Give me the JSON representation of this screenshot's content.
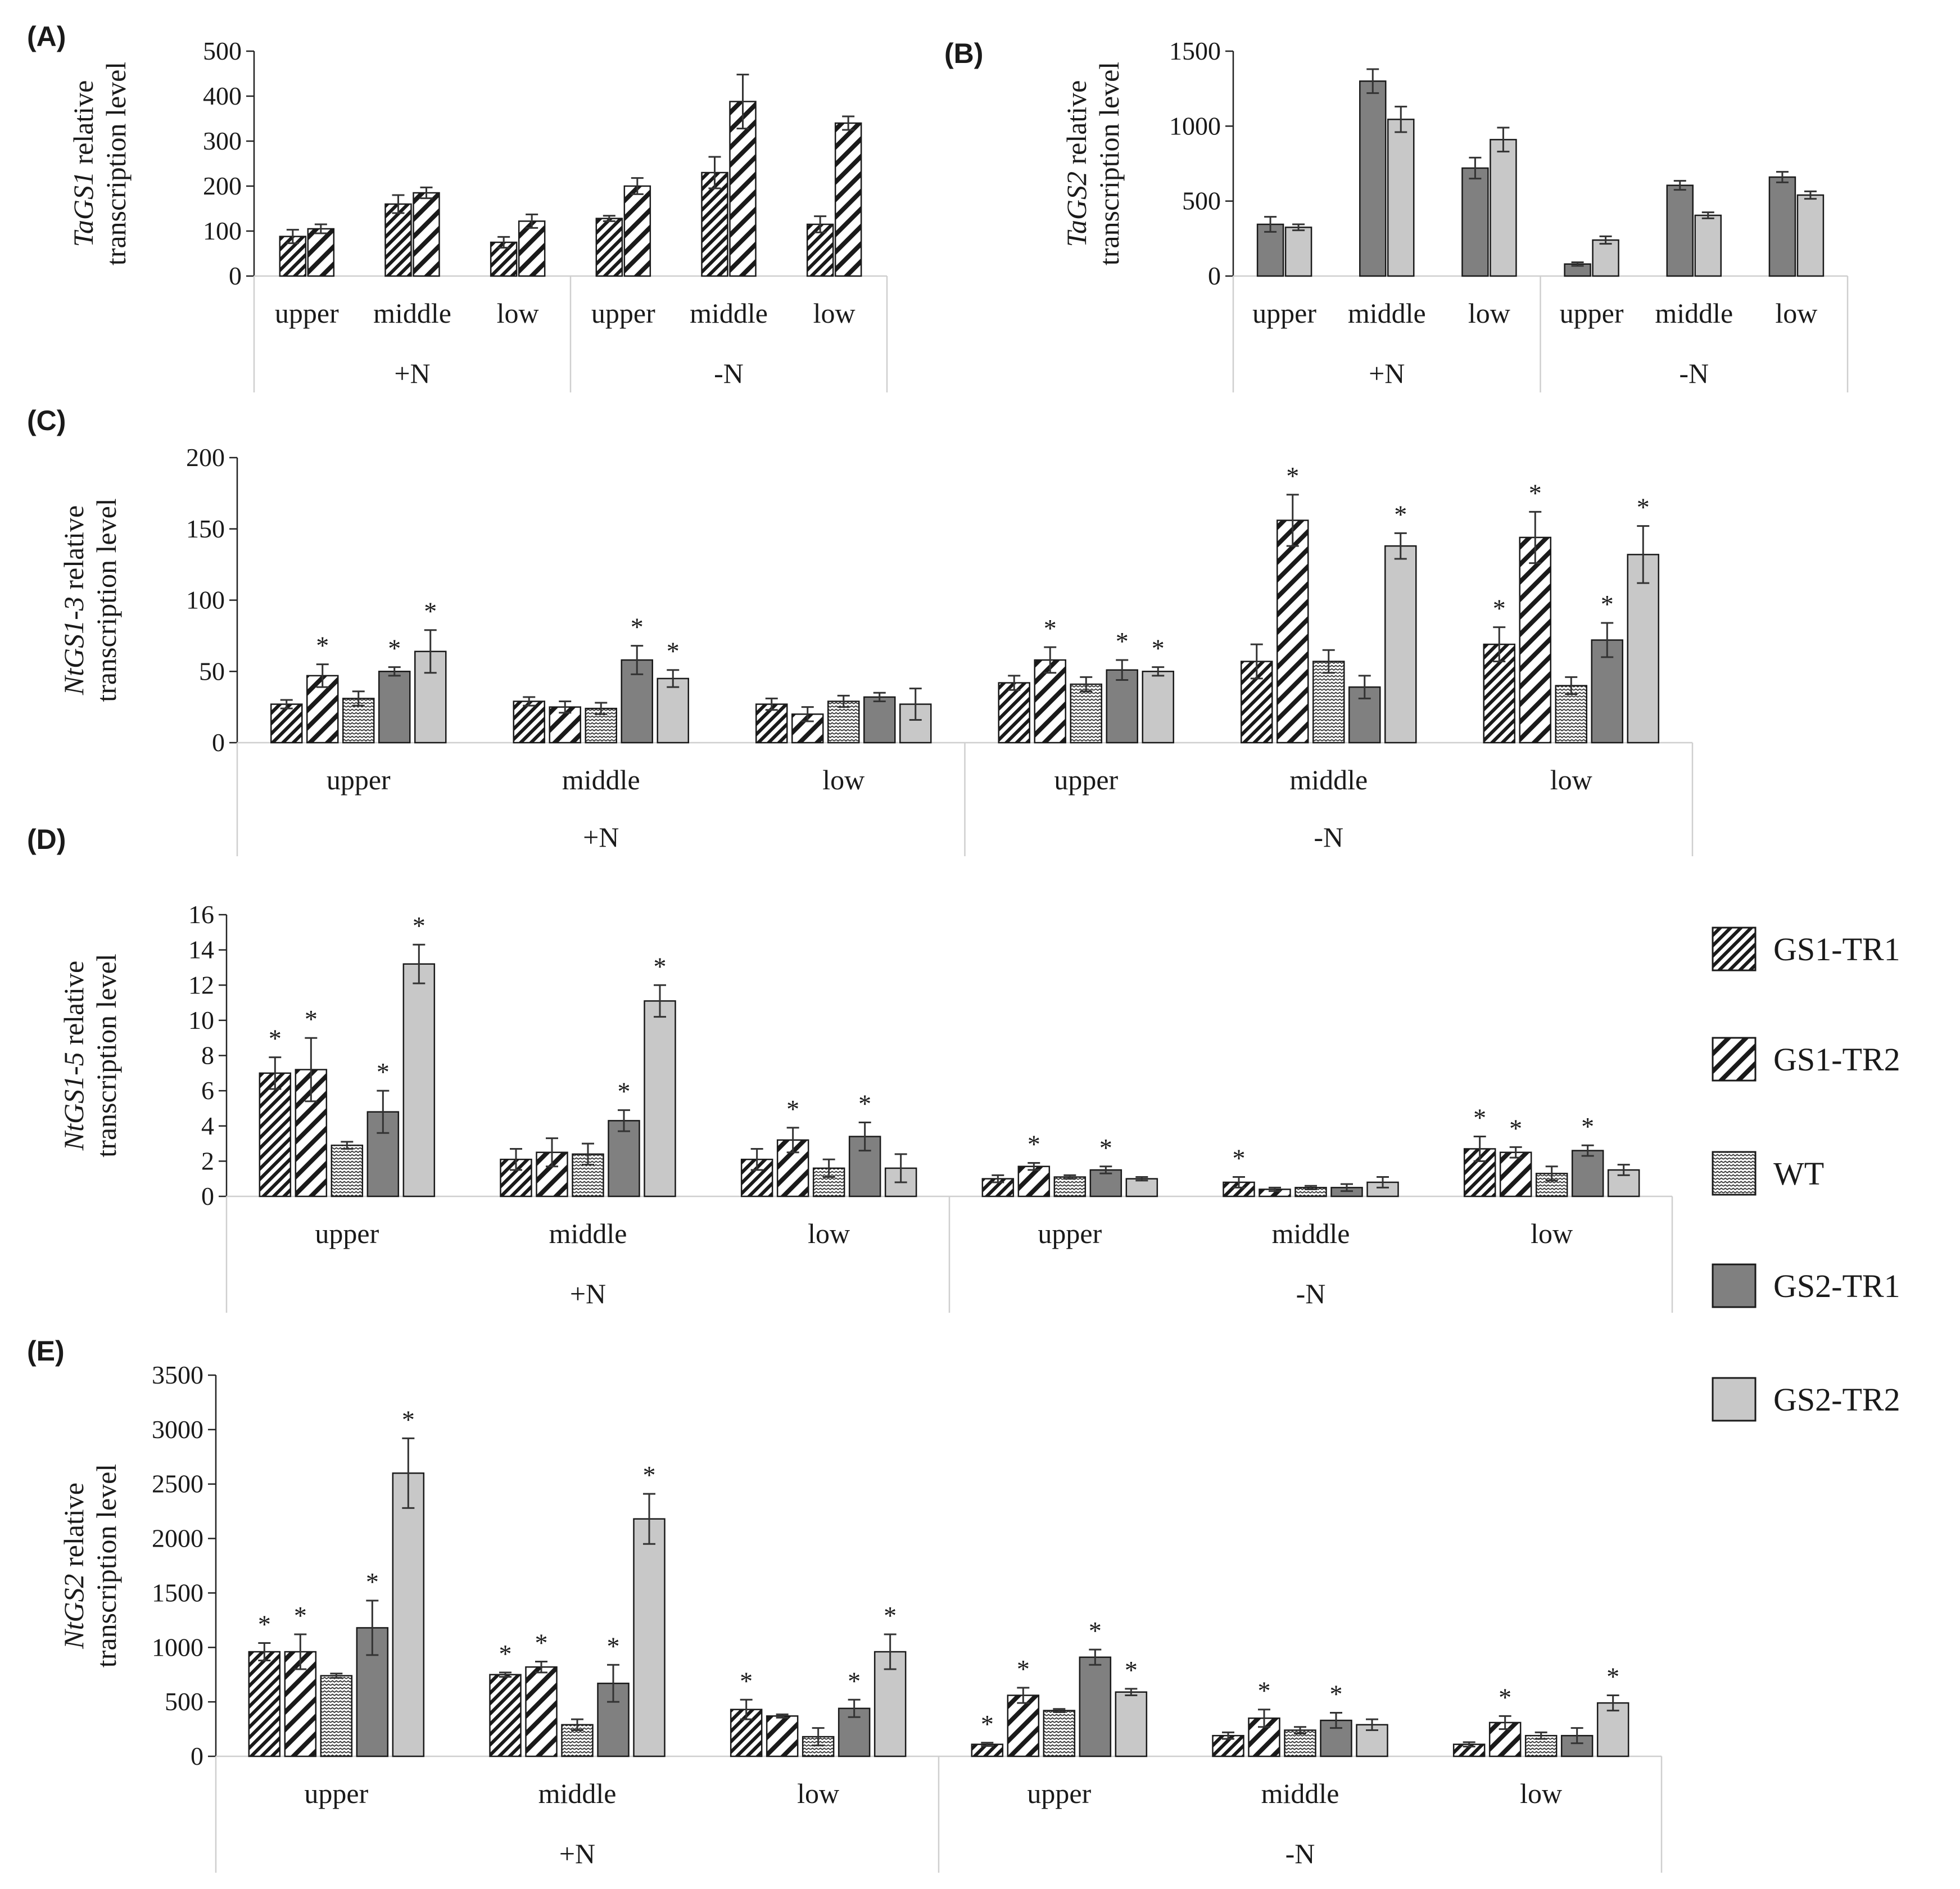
{
  "figure": {
    "legend": [
      {
        "key": "GS1-TR1",
        "label": "GS1-TR1"
      },
      {
        "key": "GS1-TR2",
        "label": "GS1-TR2"
      },
      {
        "key": "WT",
        "label": "WT"
      },
      {
        "key": "GS2-TR1",
        "label": "GS2-TR1"
      },
      {
        "key": "GS2-TR2",
        "label": "GS2-TR2"
      }
    ]
  },
  "chart_data": [
    {
      "panel": "(A)",
      "type": "bar",
      "ylabel_italic": "TaGS1",
      "ylabel_rest": " relative",
      "ylabel_line2": "transcription level",
      "ylim": [
        0,
        500
      ],
      "yticks": [
        0,
        100,
        200,
        300,
        400,
        500
      ],
      "groups": [
        "+N",
        "-N"
      ],
      "categories": [
        "upper",
        "middle",
        "low",
        "upper",
        "middle",
        "low"
      ],
      "series": [
        {
          "name": "GS1-TR1",
          "values": [
            88,
            160,
            75,
            128,
            230,
            115
          ],
          "errors": [
            15,
            20,
            12,
            6,
            35,
            18
          ],
          "stars": [
            false,
            false,
            false,
            false,
            false,
            false
          ]
        },
        {
          "name": "GS1-TR2",
          "values": [
            105,
            185,
            122,
            200,
            388,
            340
          ],
          "errors": [
            10,
            12,
            15,
            18,
            60,
            15
          ],
          "stars": [
            false,
            false,
            false,
            false,
            false,
            false
          ]
        }
      ]
    },
    {
      "panel": "(B)",
      "type": "bar",
      "ylabel_italic": "TaGS2",
      "ylabel_rest": " relative",
      "ylabel_line2": "transcription level",
      "ylim": [
        0,
        1500
      ],
      "yticks": [
        0,
        500,
        1000,
        1500
      ],
      "groups": [
        "+N",
        "-N"
      ],
      "categories": [
        "upper",
        "middle",
        "low",
        "upper",
        "middle",
        "low"
      ],
      "series": [
        {
          "name": "GS2-TR1",
          "values": [
            345,
            1300,
            720,
            80,
            605,
            660
          ],
          "errors": [
            50,
            80,
            70,
            12,
            30,
            35
          ],
          "stars": [
            false,
            false,
            false,
            false,
            false,
            false
          ]
        },
        {
          "name": "GS2-TR2",
          "values": [
            325,
            1045,
            910,
            240,
            405,
            540
          ],
          "errors": [
            20,
            85,
            80,
            25,
            20,
            25
          ],
          "stars": [
            false,
            false,
            false,
            false,
            false,
            false
          ]
        }
      ]
    },
    {
      "panel": "(C)",
      "type": "bar",
      "ylabel_italic": "NtGS1-3",
      "ylabel_rest": " relative",
      "ylabel_line2": "transcription level",
      "ylim": [
        0,
        200
      ],
      "yticks": [
        0,
        50,
        100,
        150,
        200
      ],
      "groups": [
        "+N",
        "-N"
      ],
      "categories": [
        "upper",
        "middle",
        "low",
        "upper",
        "middle",
        "low"
      ],
      "series": [
        {
          "name": "GS1-TR1",
          "values": [
            27,
            29,
            27,
            42,
            57,
            69
          ],
          "errors": [
            3,
            3,
            4,
            5,
            12,
            12
          ],
          "stars": [
            false,
            false,
            false,
            false,
            false,
            true
          ]
        },
        {
          "name": "GS1-TR2",
          "values": [
            47,
            25,
            20,
            58,
            156,
            144
          ],
          "errors": [
            8,
            4,
            5,
            9,
            18,
            18
          ],
          "stars": [
            true,
            false,
            false,
            true,
            true,
            true
          ]
        },
        {
          "name": "WT",
          "values": [
            31,
            24,
            29,
            41,
            57,
            40
          ],
          "errors": [
            5,
            4,
            4,
            5,
            8,
            6
          ],
          "stars": [
            false,
            false,
            false,
            false,
            false,
            false
          ]
        },
        {
          "name": "GS2-TR1",
          "values": [
            50,
            58,
            32,
            51,
            39,
            72
          ],
          "errors": [
            3,
            10,
            3,
            7,
            8,
            12
          ],
          "stars": [
            true,
            true,
            false,
            true,
            false,
            true
          ]
        },
        {
          "name": "GS2-TR2",
          "values": [
            64,
            45,
            27,
            50,
            138,
            132
          ],
          "errors": [
            15,
            6,
            11,
            3,
            9,
            20
          ],
          "stars": [
            true,
            true,
            false,
            true,
            true,
            true
          ]
        }
      ]
    },
    {
      "panel": "(D)",
      "type": "bar",
      "ylabel_italic": "NtGS1-5",
      "ylabel_rest": " relative",
      "ylabel_line2": "transcription level",
      "ylim": [
        0,
        16
      ],
      "yticks": [
        0,
        2,
        4,
        6,
        8,
        10,
        12,
        14,
        16
      ],
      "groups": [
        "+N",
        "-N"
      ],
      "categories": [
        "upper",
        "middle",
        "low",
        "upper",
        "middle",
        "low"
      ],
      "series": [
        {
          "name": "GS1-TR1",
          "values": [
            7.0,
            2.1,
            2.1,
            1.0,
            0.8,
            2.7
          ],
          "errors": [
            0.9,
            0.6,
            0.6,
            0.2,
            0.3,
            0.7
          ],
          "stars": [
            true,
            false,
            false,
            false,
            true,
            true
          ]
        },
        {
          "name": "GS1-TR2",
          "values": [
            7.2,
            2.5,
            3.2,
            1.7,
            0.4,
            2.5
          ],
          "errors": [
            1.8,
            0.8,
            0.7,
            0.2,
            0.1,
            0.3
          ],
          "stars": [
            true,
            false,
            true,
            true,
            false,
            true
          ]
        },
        {
          "name": "WT",
          "values": [
            2.9,
            2.4,
            1.6,
            1.1,
            0.5,
            1.3
          ],
          "errors": [
            0.2,
            0.6,
            0.5,
            0.1,
            0.1,
            0.4
          ],
          "stars": [
            false,
            false,
            false,
            false,
            false,
            false
          ]
        },
        {
          "name": "GS2-TR1",
          "values": [
            4.8,
            4.3,
            3.4,
            1.5,
            0.5,
            2.6
          ],
          "errors": [
            1.2,
            0.6,
            0.8,
            0.2,
            0.2,
            0.3
          ],
          "stars": [
            true,
            true,
            true,
            true,
            false,
            true
          ]
        },
        {
          "name": "GS2-TR2",
          "values": [
            13.2,
            11.1,
            1.6,
            1.0,
            0.8,
            1.5
          ],
          "errors": [
            1.1,
            0.9,
            0.8,
            0.1,
            0.3,
            0.3
          ],
          "stars": [
            true,
            true,
            false,
            false,
            false,
            false
          ]
        }
      ]
    },
    {
      "panel": "(E)",
      "type": "bar",
      "ylabel_italic": "NtGS2",
      "ylabel_rest": " relative",
      "ylabel_line2": "transcription level",
      "ylim": [
        0,
        3500
      ],
      "yticks": [
        0,
        500,
        1000,
        1500,
        2000,
        2500,
        3000,
        3500
      ],
      "groups": [
        "+N",
        "-N"
      ],
      "categories": [
        "upper",
        "middle",
        "low",
        "upper",
        "middle",
        "low"
      ],
      "series": [
        {
          "name": "GS1-TR1",
          "values": [
            960,
            750,
            430,
            110,
            190,
            110
          ],
          "errors": [
            80,
            20,
            90,
            15,
            30,
            20
          ],
          "stars": [
            true,
            true,
            true,
            true,
            false,
            false
          ]
        },
        {
          "name": "GS1-TR2",
          "values": [
            960,
            820,
            370,
            560,
            350,
            310
          ],
          "errors": [
            160,
            50,
            15,
            70,
            80,
            60
          ],
          "stars": [
            true,
            true,
            false,
            true,
            true,
            true
          ]
        },
        {
          "name": "WT",
          "values": [
            740,
            290,
            180,
            420,
            240,
            190
          ],
          "errors": [
            20,
            50,
            80,
            15,
            30,
            30
          ],
          "stars": [
            false,
            false,
            false,
            false,
            false,
            false
          ]
        },
        {
          "name": "GS2-TR1",
          "values": [
            1180,
            670,
            440,
            910,
            330,
            190
          ],
          "errors": [
            250,
            170,
            80,
            70,
            70,
            70
          ],
          "stars": [
            true,
            true,
            true,
            true,
            true,
            false
          ]
        },
        {
          "name": "GS2-TR2",
          "values": [
            2600,
            2180,
            960,
            590,
            290,
            490
          ],
          "errors": [
            320,
            230,
            160,
            30,
            50,
            70
          ],
          "stars": [
            true,
            true,
            true,
            true,
            false,
            true
          ]
        }
      ]
    }
  ]
}
